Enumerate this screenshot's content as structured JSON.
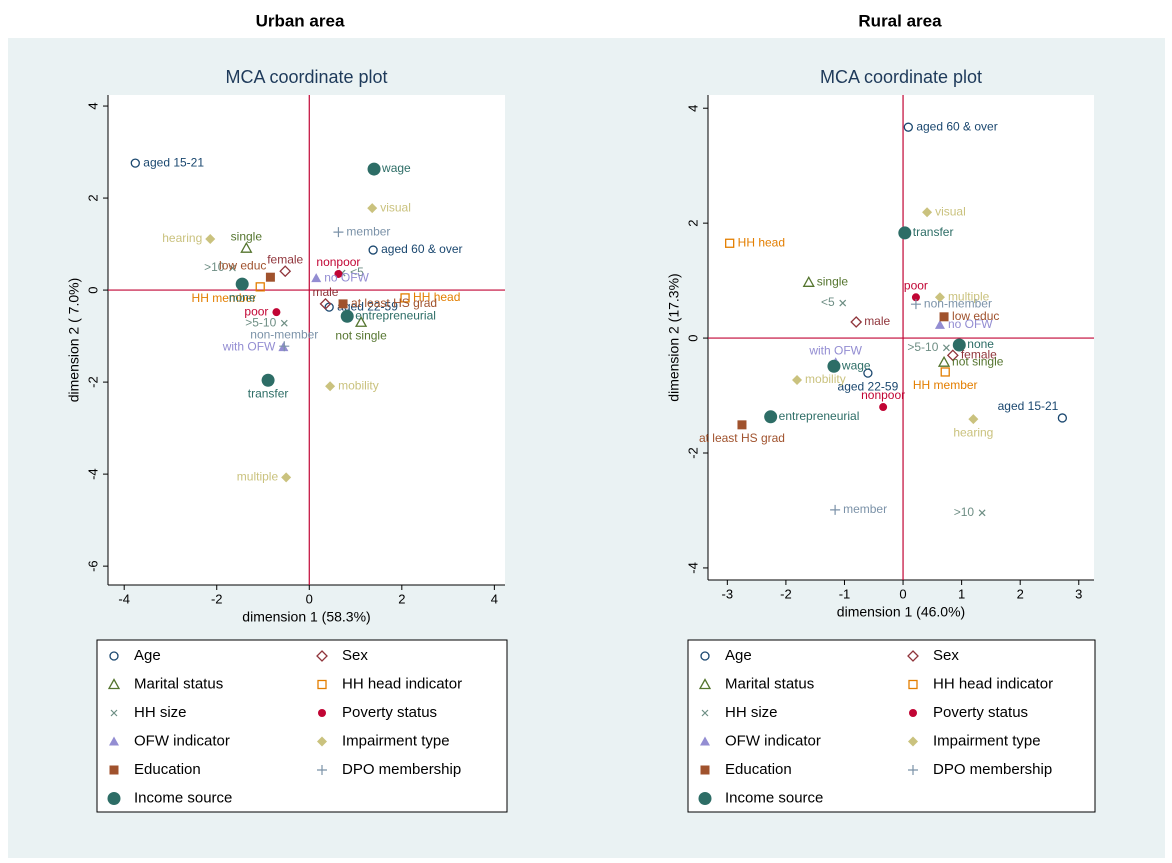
{
  "chart_data": [
    {
      "type": "scatter",
      "panel_title": "Urban area",
      "title": "MCA coordinate plot",
      "x_label": "dimension 1 (58.3%)",
      "y_label": "dimension 2 ( 7.0%)",
      "xlim": [
        -4.35,
        4.23
      ],
      "ylim": [
        -6.41,
        4.24
      ],
      "xticks": [
        -4,
        -2,
        0,
        2,
        4
      ],
      "yticks": [
        -6,
        -4,
        -2,
        0,
        2,
        4
      ],
      "xline": 0,
      "yline": 0,
      "refline_color": "#c10534",
      "series": [
        {
          "name": "Age",
          "color": "#1a476f",
          "marker": "circle-open",
          "x": [
            -3.76,
            1.38,
            0.43
          ],
          "y": [
            2.76,
            0.87,
            -0.37
          ],
          "labels": [
            "aged 15-21",
            "aged 60 & over",
            "aged 22-59"
          ]
        },
        {
          "name": "Sex",
          "color": "#90353b",
          "marker": "diamond-open",
          "x": [
            -0.52,
            0.35
          ],
          "y": [
            0.41,
            -0.3
          ],
          "labels": [
            "female",
            "male"
          ]
        },
        {
          "name": "Marital status",
          "color": "#55752f",
          "marker": "triangle-open",
          "x": [
            -1.36,
            1.12
          ],
          "y": [
            0.91,
            -0.7
          ],
          "labels": [
            "single",
            "not single"
          ]
        },
        {
          "name": "HH head indicator",
          "color": "#e37e00",
          "marker": "square-open",
          "x": [
            2.07,
            -1.06
          ],
          "y": [
            -0.17,
            0.07
          ],
          "labels": [
            "HH head",
            "HH member"
          ]
        },
        {
          "name": "HH size",
          "color": "#6e8e84",
          "marker": "x",
          "x": [
            -1.66,
            0.71,
            -0.54
          ],
          "y": [
            0.48,
            0.37,
            -0.72
          ],
          "labels": [
            ">10",
            "<5",
            ">5-10"
          ]
        },
        {
          "name": "Poverty status",
          "color": "#c10534",
          "marker": "circle",
          "x": [
            0.63,
            -0.71
          ],
          "y": [
            0.35,
            -0.48
          ],
          "labels": [
            "nonpoor",
            "poor"
          ]
        },
        {
          "name": "OFW indicator",
          "color": "#938dd2",
          "marker": "triangle",
          "x": [
            0.15,
            -0.56
          ],
          "y": [
            0.26,
            -1.24
          ],
          "labels": [
            "no OFW",
            "with OFW"
          ]
        },
        {
          "name": "Impairment type",
          "color": "#cac27e",
          "marker": "diamond",
          "x": [
            1.36,
            -2.14,
            0.45,
            -0.5
          ],
          "y": [
            1.78,
            1.11,
            -2.09,
            -4.07
          ],
          "labels": [
            "visual",
            "hearing",
            "mobility",
            "multiple"
          ]
        },
        {
          "name": "Education",
          "color": "#a0522d",
          "marker": "square",
          "x": [
            -0.84,
            0.73
          ],
          "y": [
            0.28,
            -0.3
          ],
          "labels": [
            "low educ",
            "at least HS grad"
          ]
        },
        {
          "name": "DPO membership",
          "color": "#7b92a8",
          "marker": "plus",
          "x": [
            0.63,
            -0.54
          ],
          "y": [
            1.26,
            -1.22
          ],
          "labels": [
            "member",
            "non-member"
          ]
        },
        {
          "name": "Income source",
          "color": "#2d6d66",
          "marker": "circle-big",
          "x": [
            1.4,
            -1.45,
            0.82,
            -0.89
          ],
          "y": [
            2.63,
            0.13,
            -0.57,
            -1.96
          ],
          "labels": [
            "wage",
            "none",
            "entrepreneurial",
            "transfer"
          ]
        }
      ]
    },
    {
      "type": "scatter",
      "panel_title": "Rural area",
      "title": "MCA coordinate plot",
      "x_label": "dimension 1 (46.0%)",
      "y_label": "dimension 2 (17.3%)",
      "xlim": [
        -3.33,
        3.26
      ],
      "ylim": [
        -4.21,
        4.23
      ],
      "xticks": [
        -3,
        -2,
        -1,
        0,
        1,
        2,
        3
      ],
      "yticks": [
        -4,
        -2,
        0,
        2,
        4
      ],
      "xline": 0,
      "yline": 0,
      "refline_color": "#c10534",
      "series": [
        {
          "name": "Age",
          "color": "#1a476f",
          "marker": "circle-open",
          "x": [
            0.09,
            -0.6,
            2.72
          ],
          "y": [
            3.67,
            -0.61,
            -1.39
          ],
          "labels": [
            "aged 60 & over",
            "aged 22-59",
            "aged 15-21"
          ]
        },
        {
          "name": "Sex",
          "color": "#90353b",
          "marker": "diamond-open",
          "x": [
            -0.8,
            0.85
          ],
          "y": [
            0.28,
            -0.3
          ],
          "labels": [
            "male",
            "female"
          ]
        },
        {
          "name": "Marital status",
          "color": "#55752f",
          "marker": "triangle-open",
          "x": [
            -1.61,
            0.7
          ],
          "y": [
            0.97,
            -0.42
          ],
          "labels": [
            "single",
            "not single"
          ]
        },
        {
          "name": "HH head indicator",
          "color": "#e37e00",
          "marker": "square-open",
          "x": [
            -2.96,
            0.72
          ],
          "y": [
            1.65,
            -0.59
          ],
          "labels": [
            "HH head",
            "HH member"
          ]
        },
        {
          "name": "HH size",
          "color": "#6e8e84",
          "marker": "x",
          "x": [
            -1.03,
            1.35,
            0.74
          ],
          "y": [
            0.61,
            -3.04,
            -0.17
          ],
          "labels": [
            "<5",
            ">10",
            ">5-10"
          ]
        },
        {
          "name": "Poverty status",
          "color": "#c10534",
          "marker": "circle",
          "x": [
            0.22,
            -0.34
          ],
          "y": [
            0.71,
            -1.2
          ],
          "labels": [
            "poor",
            "nonpoor"
          ]
        },
        {
          "name": "OFW indicator",
          "color": "#938dd2",
          "marker": "triangle",
          "x": [
            0.63,
            -1.15
          ],
          "y": [
            0.23,
            -0.42
          ],
          "labels": [
            "no OFW",
            "with OFW"
          ]
        },
        {
          "name": "Impairment type",
          "color": "#cac27e",
          "marker": "diamond",
          "x": [
            0.41,
            0.63,
            -1.81,
            1.2
          ],
          "y": [
            2.19,
            0.71,
            -0.73,
            -1.41
          ],
          "labels": [
            "visual",
            "multiple",
            "mobility",
            "hearing"
          ]
        },
        {
          "name": "Education",
          "color": "#a0522d",
          "marker": "square",
          "x": [
            0.7,
            -2.75
          ],
          "y": [
            0.37,
            -1.51
          ],
          "labels": [
            "low educ",
            "at least HS grad"
          ]
        },
        {
          "name": "DPO membership",
          "color": "#7b92a8",
          "marker": "plus",
          "x": [
            0.22,
            -1.16
          ],
          "y": [
            0.59,
            -2.99
          ],
          "labels": [
            "non-member",
            "member"
          ]
        },
        {
          "name": "Income source",
          "color": "#2d6d66",
          "marker": "circle-big",
          "x": [
            0.03,
            0.96,
            -1.18,
            -2.26
          ],
          "y": [
            1.83,
            -0.12,
            -0.49,
            -1.37
          ],
          "labels": [
            "transfer",
            "none",
            "wage",
            "entrepreneurial"
          ]
        }
      ]
    }
  ]
}
